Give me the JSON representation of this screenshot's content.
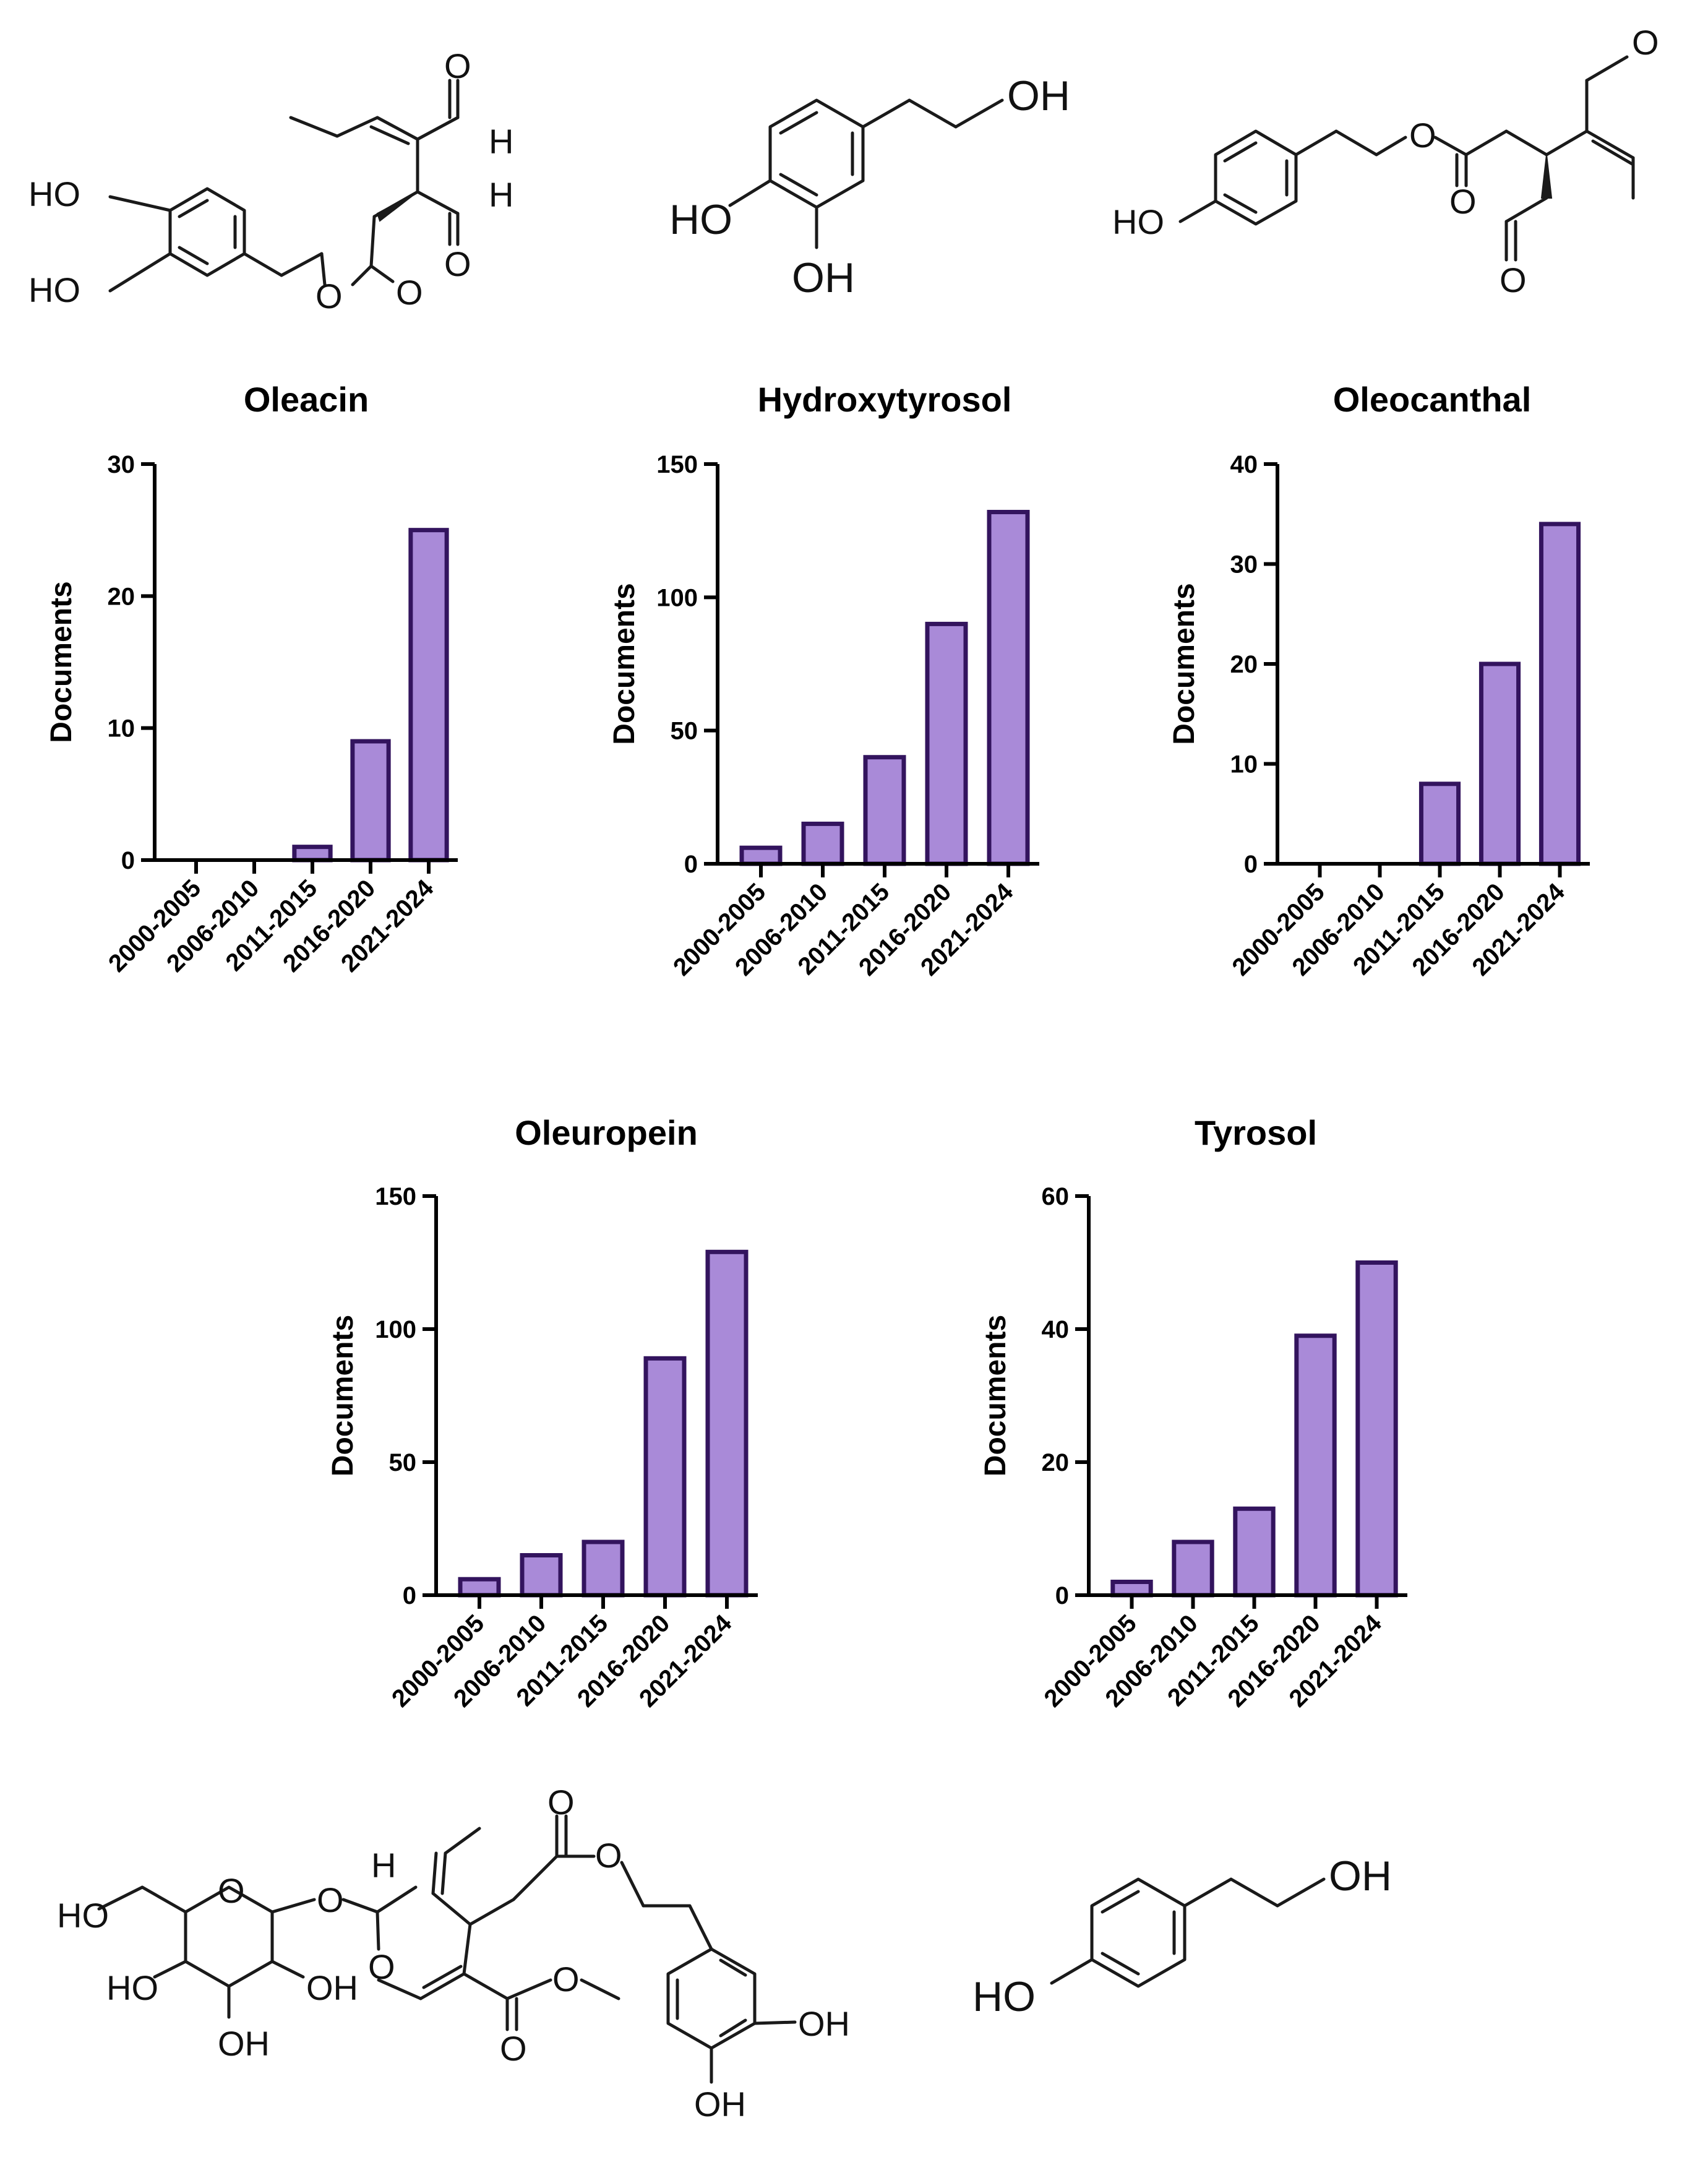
{
  "colors": {
    "bar_fill": "#a98ad8",
    "bar_stroke": "#33145e",
    "axis": "#000000"
  },
  "structures": {
    "oleacin": {
      "atoms": [
        "HO",
        "HO",
        "O",
        "O",
        "O",
        "H",
        "O",
        "H"
      ]
    },
    "hydroxytyrosol": {
      "atoms": [
        "OH",
        "HO",
        "OH"
      ]
    },
    "oleocanthal": {
      "atoms": [
        "HO",
        "O",
        "O",
        "O",
        "O"
      ]
    },
    "oleuropein": {
      "atoms": [
        "HO",
        "O",
        "O",
        "H",
        "HO",
        "OH",
        "OH",
        "O",
        "O",
        "O",
        "O",
        "O",
        "OH",
        "OH"
      ]
    },
    "tyrosol": {
      "atoms": [
        "HO",
        "OH"
      ]
    }
  },
  "chart_data": [
    {
      "type": "bar",
      "title": "Oleacin",
      "ylabel": "Documents",
      "categories": [
        "2000-2005",
        "2006-2010",
        "2011-2015",
        "2016-2020",
        "2021-2024"
      ],
      "values": [
        0,
        0,
        1,
        9,
        25
      ],
      "ylim": [
        0,
        30
      ],
      "yticks": [
        0,
        10,
        20,
        30
      ],
      "grid": false
    },
    {
      "type": "bar",
      "title": "Hydroxytyrosol",
      "ylabel": "Documents",
      "categories": [
        "2000-2005",
        "2006-2010",
        "2011-2015",
        "2016-2020",
        "2021-2024"
      ],
      "values": [
        6,
        15,
        40,
        90,
        132
      ],
      "ylim": [
        0,
        150
      ],
      "yticks": [
        0,
        50,
        100,
        150
      ],
      "grid": false
    },
    {
      "type": "bar",
      "title": "Oleocanthal",
      "ylabel": "Documents",
      "categories": [
        "2000-2005",
        "2006-2010",
        "2011-2015",
        "2016-2020",
        "2021-2024"
      ],
      "values": [
        0,
        0,
        8,
        20,
        34
      ],
      "ylim": [
        0,
        40
      ],
      "yticks": [
        0,
        10,
        20,
        30,
        40
      ],
      "grid": false
    },
    {
      "type": "bar",
      "title": "Oleuropein",
      "ylabel": "Documents",
      "categories": [
        "2000-2005",
        "2006-2010",
        "2011-2015",
        "2016-2020",
        "2021-2024"
      ],
      "values": [
        6,
        15,
        20,
        89,
        129
      ],
      "ylim": [
        0,
        150
      ],
      "yticks": [
        0,
        50,
        100,
        150
      ],
      "grid": false
    },
    {
      "type": "bar",
      "title": "Tyrosol",
      "ylabel": "Documents",
      "categories": [
        "2000-2005",
        "2006-2010",
        "2011-2015",
        "2016-2020",
        "2021-2024"
      ],
      "values": [
        2,
        8,
        13,
        39,
        50
      ],
      "ylim": [
        0,
        60
      ],
      "yticks": [
        0,
        20,
        40,
        60
      ],
      "grid": false
    }
  ]
}
